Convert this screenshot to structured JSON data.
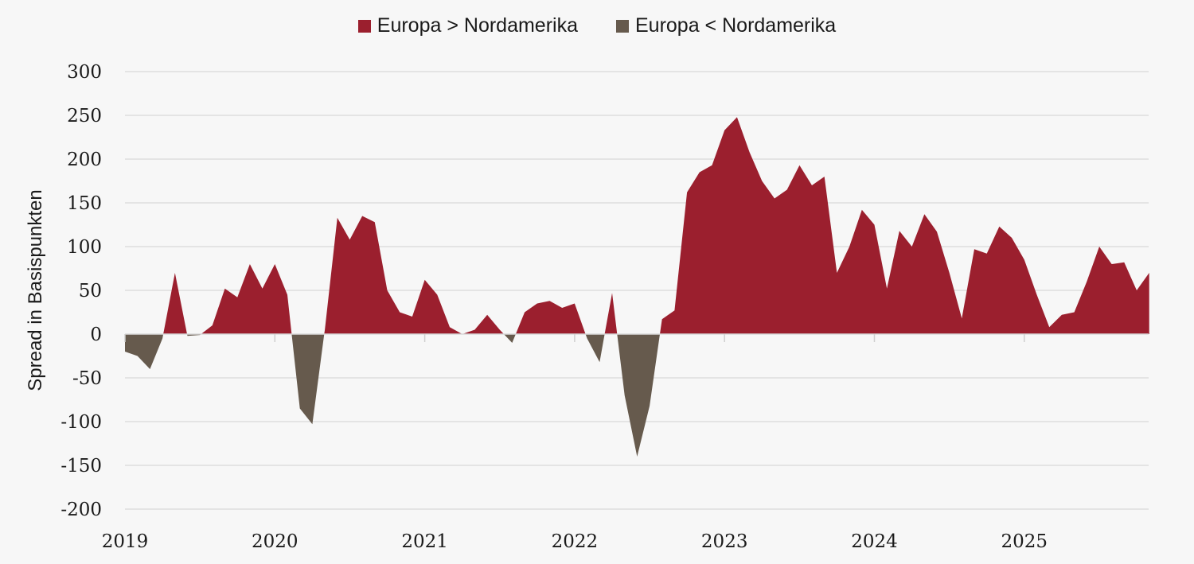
{
  "chart_data": {
    "type": "area",
    "title": "",
    "xlabel": "",
    "ylabel": "Spread in Basispunkten",
    "ylim": [
      -200,
      300
    ],
    "yticks": [
      300,
      250,
      200,
      150,
      100,
      50,
      0,
      -50,
      -100,
      -150,
      -200
    ],
    "xticks": [
      "2019",
      "2020",
      "2021",
      "2022",
      "2023",
      "2024",
      "2025"
    ],
    "x_start": "2019-01",
    "x_frequency": "monthly",
    "grid": true,
    "legend_position": "top-center",
    "legend": [
      {
        "name": "Europa > Nordamerika",
        "color": "#9b1f2e"
      },
      {
        "name": "Europa < Nordamerika",
        "color": "#665a4d"
      }
    ],
    "values": [
      -20,
      -25,
      -40,
      -5,
      70,
      -2,
      -1,
      10,
      52,
      42,
      80,
      52,
      80,
      45,
      -85,
      -103,
      5,
      133,
      108,
      135,
      128,
      50,
      25,
      20,
      62,
      45,
      8,
      0,
      5,
      22,
      5,
      -10,
      25,
      35,
      38,
      30,
      35,
      -5,
      -32,
      47,
      -70,
      -140,
      -82,
      17,
      27,
      162,
      185,
      193,
      233,
      248,
      208,
      175,
      155,
      165,
      193,
      170,
      180,
      70,
      100,
      142,
      125,
      52,
      118,
      100,
      137,
      117,
      70,
      18,
      97,
      92,
      123,
      110,
      85,
      45,
      8,
      22,
      25,
      60,
      100,
      80,
      82,
      50,
      70
    ]
  }
}
